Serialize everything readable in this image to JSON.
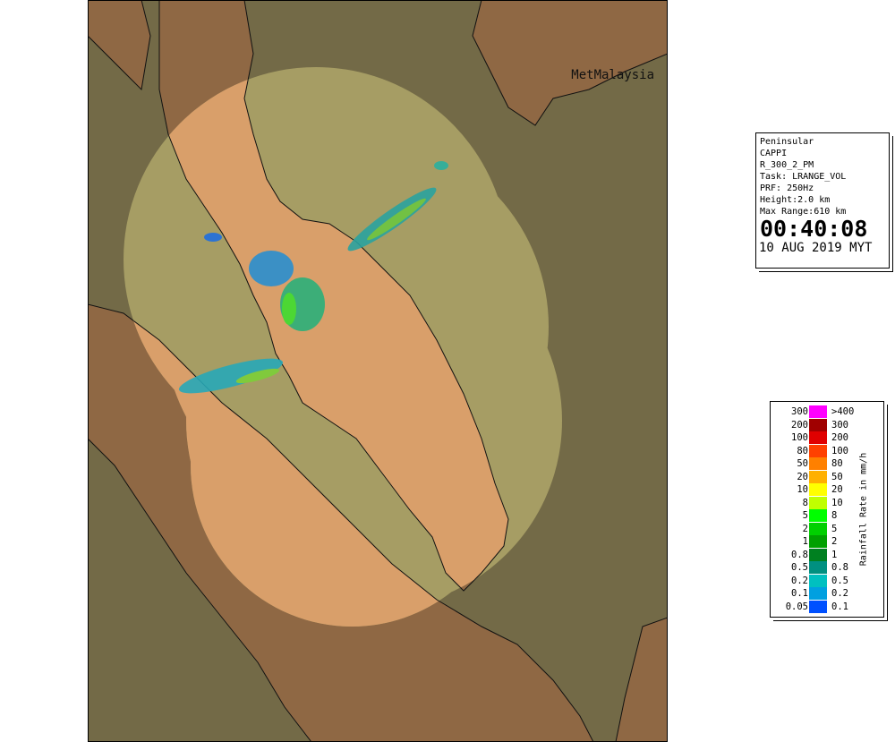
{
  "map": {
    "watermark": "MetMalaysia"
  },
  "info": {
    "lines": [
      "Peninsular",
      "CAPPI",
      "R_300_2_PM",
      "Task: LRANGE_VOL",
      "PRF: 250Hz",
      "Height:2.0 km",
      "Max Range:610 km"
    ],
    "time": "00:40:08",
    "date": "10 AUG 2019 MYT"
  },
  "legend": {
    "title": "Rainfall Rate in mm/h",
    "rows": [
      [
        "300",
        ">400"
      ],
      [
        "200",
        "300"
      ],
      [
        "100",
        "200"
      ],
      [
        "80",
        "100"
      ],
      [
        "50",
        "80"
      ],
      [
        "20",
        "50"
      ],
      [
        "10",
        "20"
      ],
      [
        "8",
        "10"
      ],
      [
        "5",
        "8"
      ],
      [
        "2",
        "5"
      ],
      [
        "1",
        "2"
      ],
      [
        "0.8",
        "1"
      ],
      [
        "0.5",
        "0.8"
      ],
      [
        "0.2",
        "0.5"
      ],
      [
        "0.1",
        "0.2"
      ],
      [
        "0.05",
        "0.1"
      ]
    ]
  }
}
